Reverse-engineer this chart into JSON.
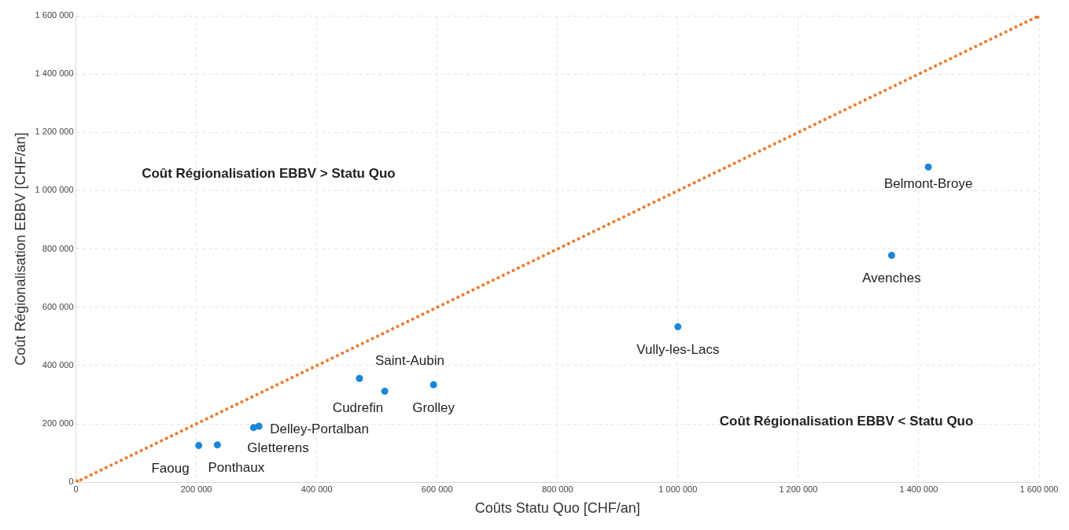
{
  "chart_data": {
    "type": "scatter",
    "xlabel": "Coûts Statu Quo [CHF/an]",
    "ylabel": "Coût Régionalisation EBBV [CHF/an]",
    "xlim": [
      0,
      1600000
    ],
    "ylim": [
      0,
      1600000
    ],
    "xticks": [
      0,
      {
        "value": 200000,
        "label": "200 000"
      },
      {
        "value": 400000,
        "label": "400 000"
      },
      {
        "value": 600000,
        "label": "600 000"
      },
      {
        "value": 800000,
        "label": "800 000"
      },
      {
        "value": 1000000,
        "label": "1 000 000"
      },
      {
        "value": 1200000,
        "label": "1 200 000"
      },
      {
        "value": 1400000,
        "label": "1 400 000"
      },
      {
        "value": 1600000,
        "label": "1 600 000"
      }
    ],
    "yticks": [
      0,
      {
        "value": 200000,
        "label": "200 000"
      },
      {
        "value": 400000,
        "label": "400 000"
      },
      {
        "value": 600000,
        "label": "600 000"
      },
      {
        "value": 800000,
        "label": "800 000"
      },
      {
        "value": 1000000,
        "label": "1 000 000"
      },
      {
        "value": 1200000,
        "label": "1 200 000"
      },
      {
        "value": 1400000,
        "label": "1 400 000"
      },
      {
        "value": 1600000,
        "label": "1 600 000"
      }
    ],
    "grid": true,
    "marker": "circle",
    "series": [
      {
        "type": "scatter",
        "color": "#1a86d8",
        "x": [
          204000,
          235000,
          295000,
          304000,
          471000,
          513000,
          594000,
          1000000,
          1416000,
          1355000
        ],
        "values": [
          126000,
          128000,
          187000,
          192000,
          356000,
          312000,
          334000,
          533000,
          1081000,
          778000
        ]
      },
      {
        "type": "line",
        "color": "#ed7d31",
        "line_style": "dotted",
        "marker": "circle",
        "x": [
          0,
          1600000
        ],
        "values": [
          0,
          1600000
        ]
      }
    ],
    "annotations": [
      {
        "text": "Faoug",
        "x": 204000,
        "y": 126000
      },
      {
        "text": "Ponthaux",
        "x": 235000,
        "y": 128000
      },
      {
        "text": "Gletterens",
        "x": 295000,
        "y": 187000
      },
      {
        "text": "Delley-Portalban",
        "x": 304000,
        "y": 192000
      },
      {
        "text": "Saint-Aubin",
        "x": 471000,
        "y": 356000
      },
      {
        "text": "Cudrefin",
        "x": 513000,
        "y": 312000
      },
      {
        "text": "Grolley",
        "x": 594000,
        "y": 334000
      },
      {
        "text": "Vully-les-Lacs",
        "x": 1000000,
        "y": 533000
      },
      {
        "text": "Belmont-Broye",
        "x": 1416000,
        "y": 1081000
      },
      {
        "text": "Avenches",
        "x": 1355000,
        "y": 778000
      },
      "Coût Régionalisation EBBV > Statu Quo",
      "Coût Régionalisation EBBV < Statu Quo"
    ]
  }
}
